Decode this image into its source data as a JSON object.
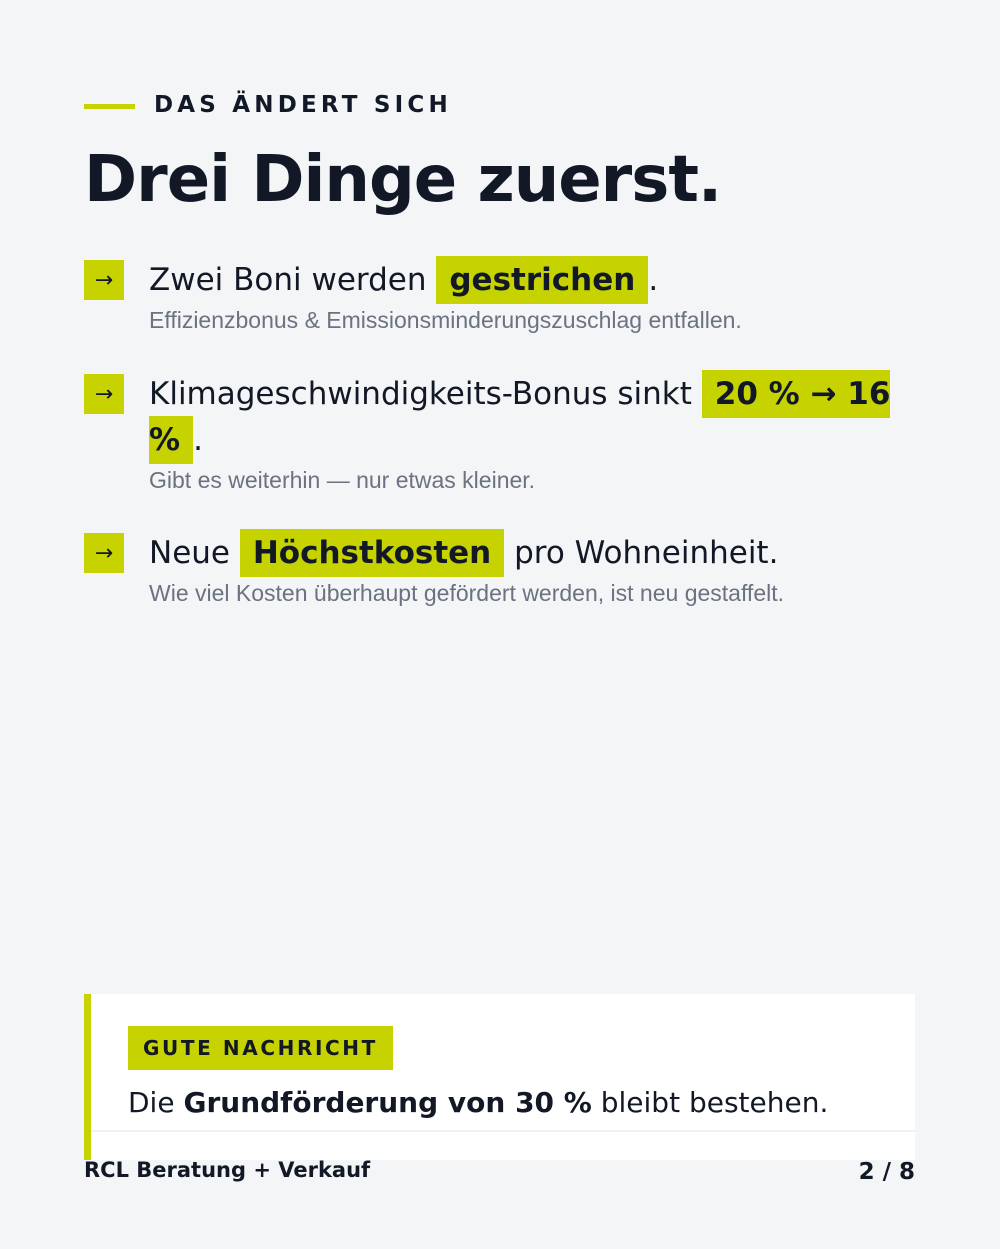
{
  "kicker": "DAS ÄNDERT SICH",
  "title": "Drei Dinge zuerst.",
  "items": [
    {
      "icon": "arrow-right-icon",
      "arrow": "→",
      "before": "Zwei Boni werden ",
      "highlight": "gestrichen",
      "after": ".",
      "sub": "Effizienzbonus & Emissionsminderungszuschlag entfallen."
    },
    {
      "icon": "arrow-right-icon",
      "arrow": "→",
      "before": "Klimageschwindigkeits-Bonus sinkt ",
      "highlight": "20 % → 16 %",
      "after": ".",
      "sub": "Gibt es weiterhin — nur etwas kleiner."
    },
    {
      "icon": "arrow-right-icon",
      "arrow": "→",
      "before": "Neue ",
      "highlight": "Höchstkosten",
      "after": " pro Wohneinheit.",
      "sub": "Wie viel Kosten überhaupt gefördert werden, ist neu gestaffelt."
    }
  ],
  "callout": {
    "badge": "GUTE NACHRICHT",
    "text_before": "Die ",
    "text_bold": "Grundförderung von 30 %",
    "text_after": " bleibt bestehen."
  },
  "footer": {
    "brand": "RCL Beratung + Verkauf",
    "page": "2 / 8"
  },
  "colors": {
    "accent": "#c6d300",
    "text": "#121826",
    "muted": "#6b7280",
    "background": "#f3f5f7"
  }
}
